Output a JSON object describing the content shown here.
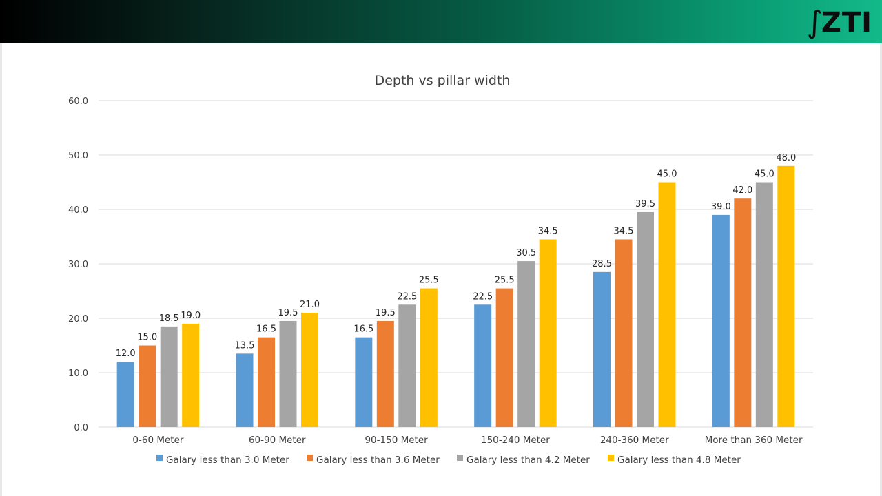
{
  "header": {
    "logo_text": "ZTI",
    "colors": {
      "band_start": "#000000",
      "band_end": "#13b98a"
    }
  },
  "chart_data": {
    "type": "bar",
    "title": "Depth vs pillar width",
    "xlabel": "",
    "ylabel": "",
    "ylim": [
      0,
      60
    ],
    "ytick_step": 10,
    "ytick_labels": [
      "0.0",
      "10.0",
      "20.0",
      "30.0",
      "40.0",
      "50.0",
      "60.0"
    ],
    "grid": true,
    "legend_position": "bottom",
    "categories": [
      "0-60 Meter",
      "60-90 Meter",
      "90-150 Meter",
      "150-240 Meter",
      "240-360 Meter",
      "More than 360 Meter"
    ],
    "series": [
      {
        "name": "Galary less than 3.0 Meter",
        "color": "#5b9bd5",
        "values": [
          12.0,
          13.5,
          16.5,
          22.5,
          28.5,
          39.0
        ]
      },
      {
        "name": "Galary less than 3.6 Meter",
        "color": "#ed7d31",
        "values": [
          15.0,
          16.5,
          19.5,
          25.5,
          34.5,
          42.0
        ]
      },
      {
        "name": "Galary less than 4.2 Meter",
        "color": "#a5a5a5",
        "values": [
          18.5,
          19.5,
          22.5,
          30.5,
          39.5,
          45.0
        ]
      },
      {
        "name": "Galary less than 4.8 Meter",
        "color": "#ffc000",
        "values": [
          19.0,
          21.0,
          25.5,
          34.5,
          45.0,
          48.0
        ]
      }
    ]
  }
}
